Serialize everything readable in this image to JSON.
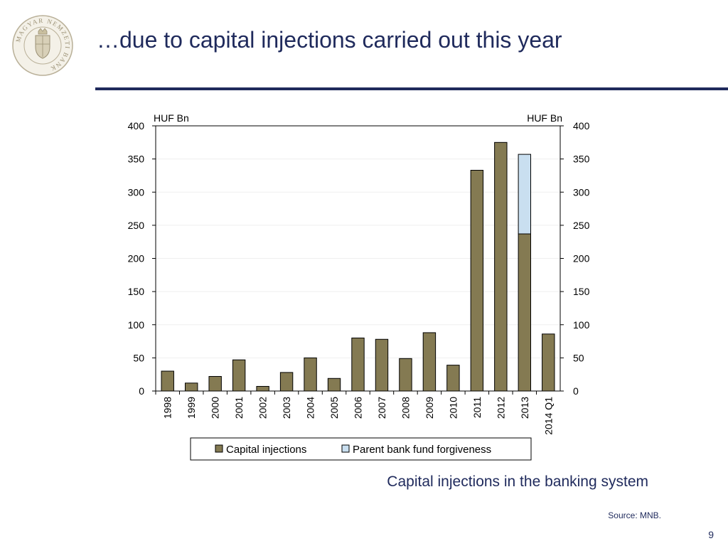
{
  "header": {
    "title": "…due to capital injections carried out this year"
  },
  "logo": {
    "text": "MAGYAR NEMZETI BANK"
  },
  "chart_data": {
    "type": "bar",
    "stacked": true,
    "categories": [
      "1998",
      "1999",
      "2000",
      "2001",
      "2002",
      "2003",
      "2004",
      "2005",
      "2006",
      "2007",
      "2008",
      "2009",
      "2010",
      "2011",
      "2012",
      "2013",
      "2014 Q1"
    ],
    "series": [
      {
        "name": "Capital injections",
        "color": "#847a52",
        "values": [
          30,
          12,
          22,
          47,
          7,
          28,
          50,
          19,
          80,
          78,
          49,
          88,
          39,
          333,
          375,
          237,
          86
        ]
      },
      {
        "name": "Parent bank fund forgiveness",
        "color": "#c9dff0",
        "values": [
          0,
          0,
          0,
          0,
          0,
          0,
          0,
          0,
          0,
          0,
          0,
          0,
          0,
          0,
          0,
          120,
          0
        ]
      }
    ],
    "ylabel_left": "HUF Bn",
    "ylabel_right": "HUF Bn",
    "ylim": [
      0,
      400
    ],
    "yticks": [
      0,
      50,
      100,
      150,
      200,
      250,
      300,
      350,
      400
    ],
    "legend_position": "bottom"
  },
  "caption": "Capital injections in the banking system",
  "source": "Source: MNB.",
  "page_number": "9"
}
